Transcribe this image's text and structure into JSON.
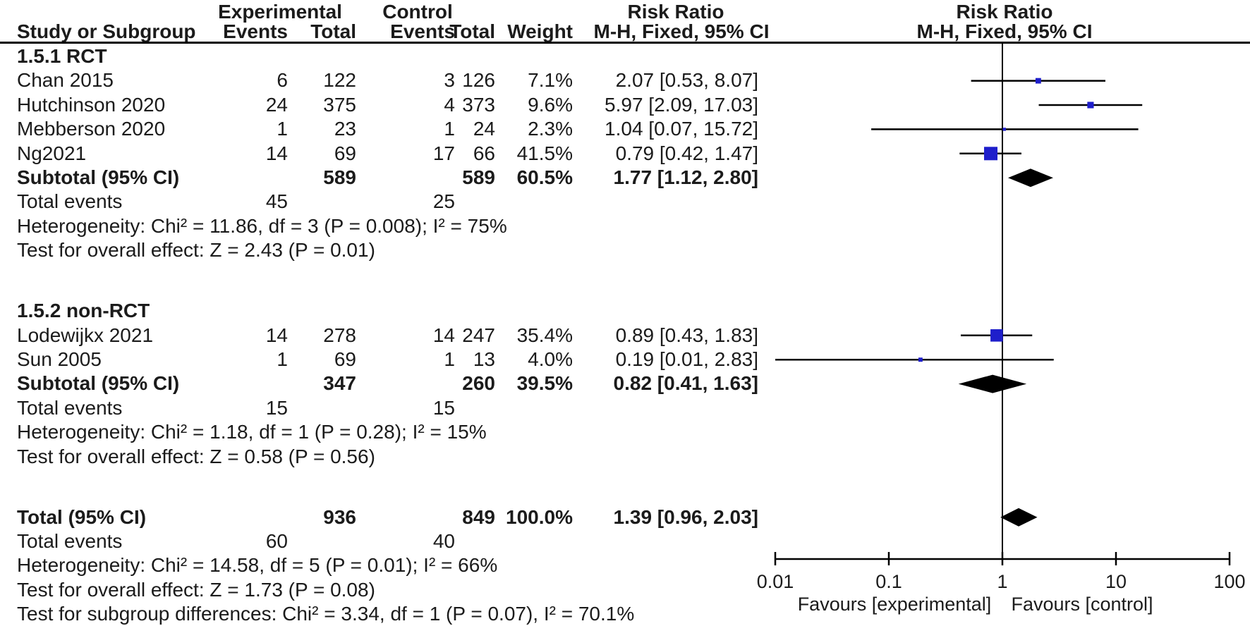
{
  "chart_data": {
    "type": "forest",
    "effect_measure": "Risk Ratio",
    "method": "M-H, Fixed, 95% CI",
    "headers": {
      "experimental": "Experimental",
      "control": "Control",
      "risk_ratio": "Risk Ratio",
      "study_or_subgroup": "Study or Subgroup",
      "events": "Events",
      "total": "Total",
      "weight": "Weight",
      "mh_fixed_ci": "M-H, Fixed, 95% CI"
    },
    "labels": {
      "total_events": "Total events"
    },
    "groups": [
      {
        "label": "1.5.1 RCT",
        "studies": [
          {
            "name": "Chan 2015",
            "exp_events": "6",
            "exp_total": "122",
            "ctl_events": "3",
            "ctl_total": "126",
            "weight": "7.1%",
            "weight_pct": 7.1,
            "rr": 2.07,
            "ci_low": 0.53,
            "ci_high": 8.07,
            "ci_text": "2.07 [0.53, 8.07]"
          },
          {
            "name": "Hutchinson 2020",
            "exp_events": "24",
            "exp_total": "375",
            "ctl_events": "4",
            "ctl_total": "373",
            "weight": "9.6%",
            "weight_pct": 9.6,
            "rr": 5.97,
            "ci_low": 2.09,
            "ci_high": 17.03,
            "ci_text": "5.97 [2.09, 17.03]"
          },
          {
            "name": "Mebberson 2020",
            "exp_events": "1",
            "exp_total": "23",
            "ctl_events": "1",
            "ctl_total": "24",
            "weight": "2.3%",
            "weight_pct": 2.3,
            "rr": 1.04,
            "ci_low": 0.07,
            "ci_high": 15.72,
            "ci_text": "1.04 [0.07, 15.72]"
          },
          {
            "name": "Ng2021",
            "exp_events": "14",
            "exp_total": "69",
            "ctl_events": "17",
            "ctl_total": "66",
            "weight": "41.5%",
            "weight_pct": 41.5,
            "rr": 0.79,
            "ci_low": 0.42,
            "ci_high": 1.47,
            "ci_text": "0.79 [0.42, 1.47]"
          }
        ],
        "subtotal": {
          "label": "Subtotal (95% CI)",
          "exp_total": "589",
          "ctl_total": "589",
          "weight": "60.5%",
          "rr": 1.77,
          "ci_low": 1.12,
          "ci_high": 2.8,
          "ci_text": "1.77 [1.12, 2.80]"
        },
        "total_events": {
          "experimental": "45",
          "control": "25"
        },
        "heterogeneity": "Heterogeneity: Chi² = 11.86, df = 3 (P = 0.008); I² = 75%",
        "overall_effect": "Test for overall effect: Z = 2.43 (P = 0.01)"
      },
      {
        "label": "1.5.2 non-RCT",
        "studies": [
          {
            "name": "Lodewijkx 2021",
            "exp_events": "14",
            "exp_total": "278",
            "ctl_events": "14",
            "ctl_total": "247",
            "weight": "35.4%",
            "weight_pct": 35.4,
            "rr": 0.89,
            "ci_low": 0.43,
            "ci_high": 1.83,
            "ci_text": "0.89 [0.43, 1.83]"
          },
          {
            "name": "Sun 2005",
            "exp_events": "1",
            "exp_total": "69",
            "ctl_events": "1",
            "ctl_total": "13",
            "weight": "4.0%",
            "weight_pct": 4.0,
            "rr": 0.19,
            "ci_low": 0.01,
            "ci_high": 2.83,
            "ci_text": "0.19 [0.01, 2.83]"
          }
        ],
        "subtotal": {
          "label": "Subtotal (95% CI)",
          "exp_total": "347",
          "ctl_total": "260",
          "weight": "39.5%",
          "rr": 0.82,
          "ci_low": 0.41,
          "ci_high": 1.63,
          "ci_text": "0.82 [0.41, 1.63]"
        },
        "total_events": {
          "experimental": "15",
          "control": "15"
        },
        "heterogeneity": "Heterogeneity: Chi² = 1.18, df = 1 (P = 0.28); I² = 15%",
        "overall_effect": "Test for overall effect: Z = 0.58 (P = 0.56)"
      }
    ],
    "total": {
      "label": "Total (95% CI)",
      "exp_total": "936",
      "ctl_total": "849",
      "weight": "100.0%",
      "rr": 1.39,
      "ci_low": 0.96,
      "ci_high": 2.03,
      "ci_text": "1.39 [0.96, 2.03]",
      "total_events": {
        "experimental": "60",
        "control": "40"
      },
      "heterogeneity": "Heterogeneity: Chi² = 14.58, df = 5 (P = 0.01); I² = 66%",
      "overall_effect": "Test for overall effect: Z = 1.73 (P = 0.08)",
      "subgroup_differences": "Test for subgroup differences: Chi² = 3.34, df = 1 (P = 0.07), I² = 70.1%"
    },
    "axis": {
      "scale": "log10",
      "tick_labels": [
        "0.01",
        "0.1",
        "1",
        "10",
        "100"
      ],
      "tick_values": [
        0.01,
        0.1,
        1,
        10,
        100
      ],
      "favours_left": "Favours [experimental]",
      "favours_right": "Favours [control]"
    },
    "colors": {
      "marker": "#1e1ecb",
      "diamond": "#000000",
      "line": "#000000",
      "text": "#1b1b1b"
    }
  }
}
